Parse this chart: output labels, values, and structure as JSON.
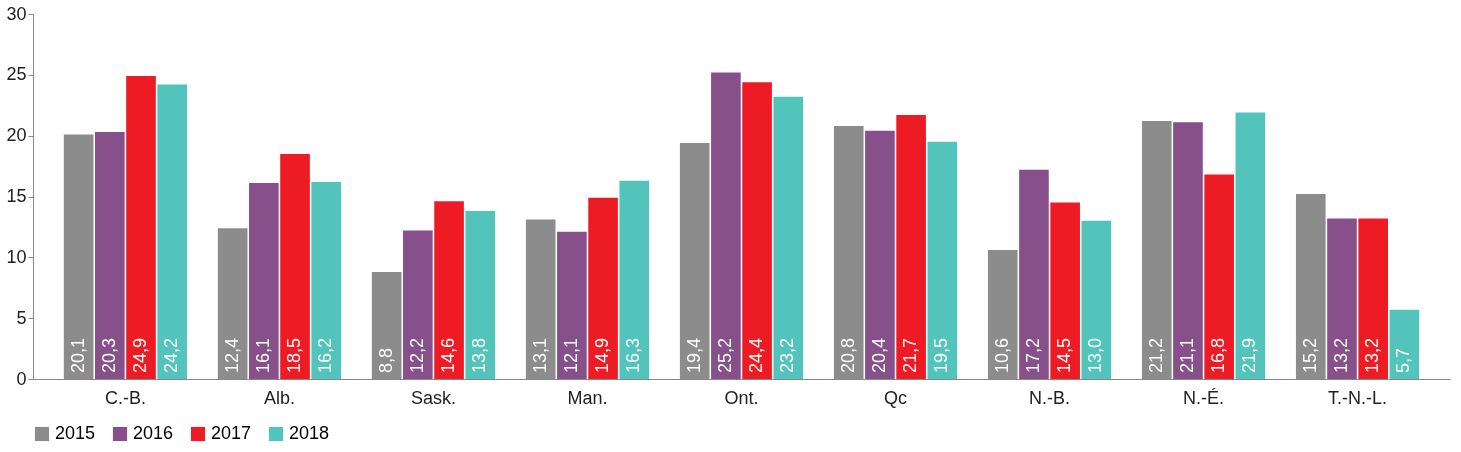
{
  "chart_data": {
    "type": "bar",
    "categories": [
      "C.-B.",
      "Alb.",
      "Sask.",
      "Man.",
      "Ont.",
      "Qc",
      "N.-B.",
      "N.-É.",
      "T.-N.-L."
    ],
    "series": [
      {
        "name": "2015",
        "color": "#8c8c8c",
        "values": [
          20.1,
          12.4,
          8.8,
          13.1,
          19.4,
          20.8,
          10.6,
          21.2,
          15.2
        ],
        "value_labels": [
          "20,1",
          "12,4",
          "8,8",
          "13,1",
          "19,4",
          "20,8",
          "10,6",
          "21,2",
          "15,2"
        ]
      },
      {
        "name": "2016",
        "color": "#87508b",
        "values": [
          20.3,
          16.1,
          12.2,
          12.1,
          25.2,
          20.4,
          17.2,
          21.1,
          13.2
        ],
        "value_labels": [
          "20,3",
          "16,1",
          "12,2",
          "12,1",
          "25,2",
          "20,4",
          "17,2",
          "21,1",
          "13,2"
        ]
      },
      {
        "name": "2017",
        "color": "#ed1c24",
        "values": [
          24.9,
          18.5,
          14.6,
          14.9,
          24.4,
          21.7,
          14.5,
          16.8,
          13.2
        ],
        "value_labels": [
          "24,9",
          "18,5",
          "14,6",
          "14,9",
          "24,4",
          "21,7",
          "14,5",
          "16,8",
          "13,2"
        ]
      },
      {
        "name": "2018",
        "color": "#52c4bb",
        "values": [
          24.2,
          16.2,
          13.8,
          16.3,
          23.2,
          19.5,
          13.0,
          21.9,
          5.7
        ],
        "value_labels": [
          "24,2",
          "16,2",
          "13,8",
          "16,3",
          "23,2",
          "19,5",
          "13,0",
          "21,9",
          "5,7"
        ]
      }
    ],
    "ylim": [
      0,
      30
    ],
    "yticks": [
      0,
      5,
      10,
      15,
      20,
      25,
      30
    ],
    "grid": false,
    "legend": "bottom"
  }
}
